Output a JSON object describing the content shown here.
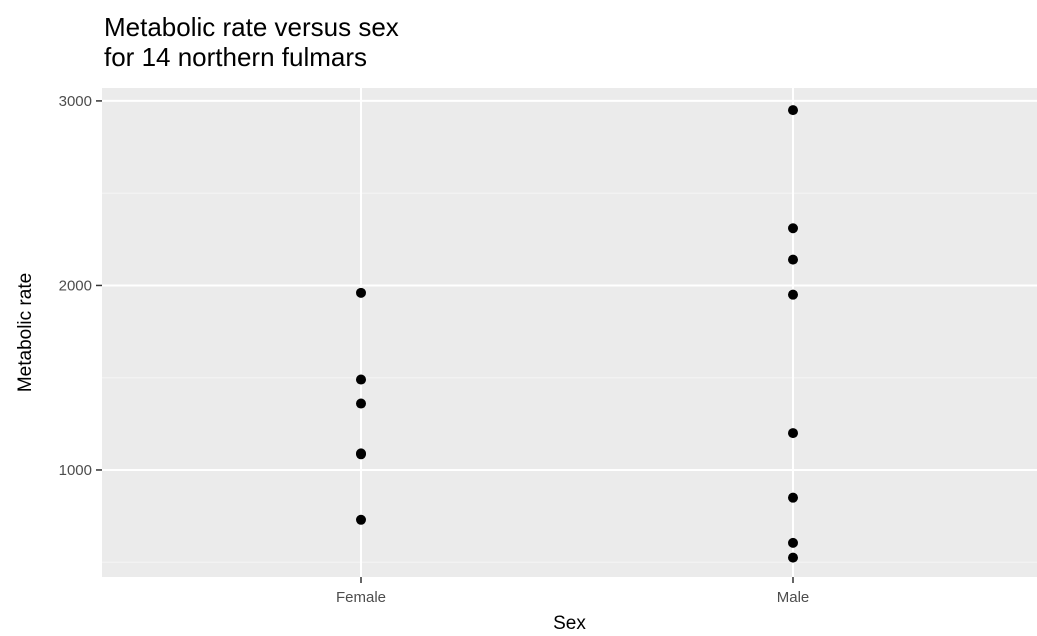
{
  "chart_data": {
    "type": "scatter",
    "title_lines": [
      "Metabolic rate versus sex",
      "for 14 northern fulmars"
    ],
    "xlabel": "Sex",
    "ylabel": "Metabolic rate",
    "categories": [
      "Female",
      "Male"
    ],
    "ylim": [
      420,
      3070
    ],
    "y_major_ticks": [
      1000,
      2000,
      3000
    ],
    "y_minor_ticks": [
      500,
      1500,
      2500
    ],
    "grid": true,
    "legend": "none",
    "series": [
      {
        "category": "Female",
        "values": [
          1960,
          1490,
          1360,
          1090,
          1085,
          730
        ]
      },
      {
        "category": "Male",
        "values": [
          2950,
          2310,
          2140,
          1950,
          1200,
          850,
          605,
          525
        ]
      }
    ],
    "colors": {
      "panel_background": "#ebebeb",
      "grid_major": "#ffffff",
      "grid_minor": "#f5f5f5",
      "point": "#000000",
      "tick_label": "#4d4d4d",
      "tick_mark": "#333333"
    }
  }
}
